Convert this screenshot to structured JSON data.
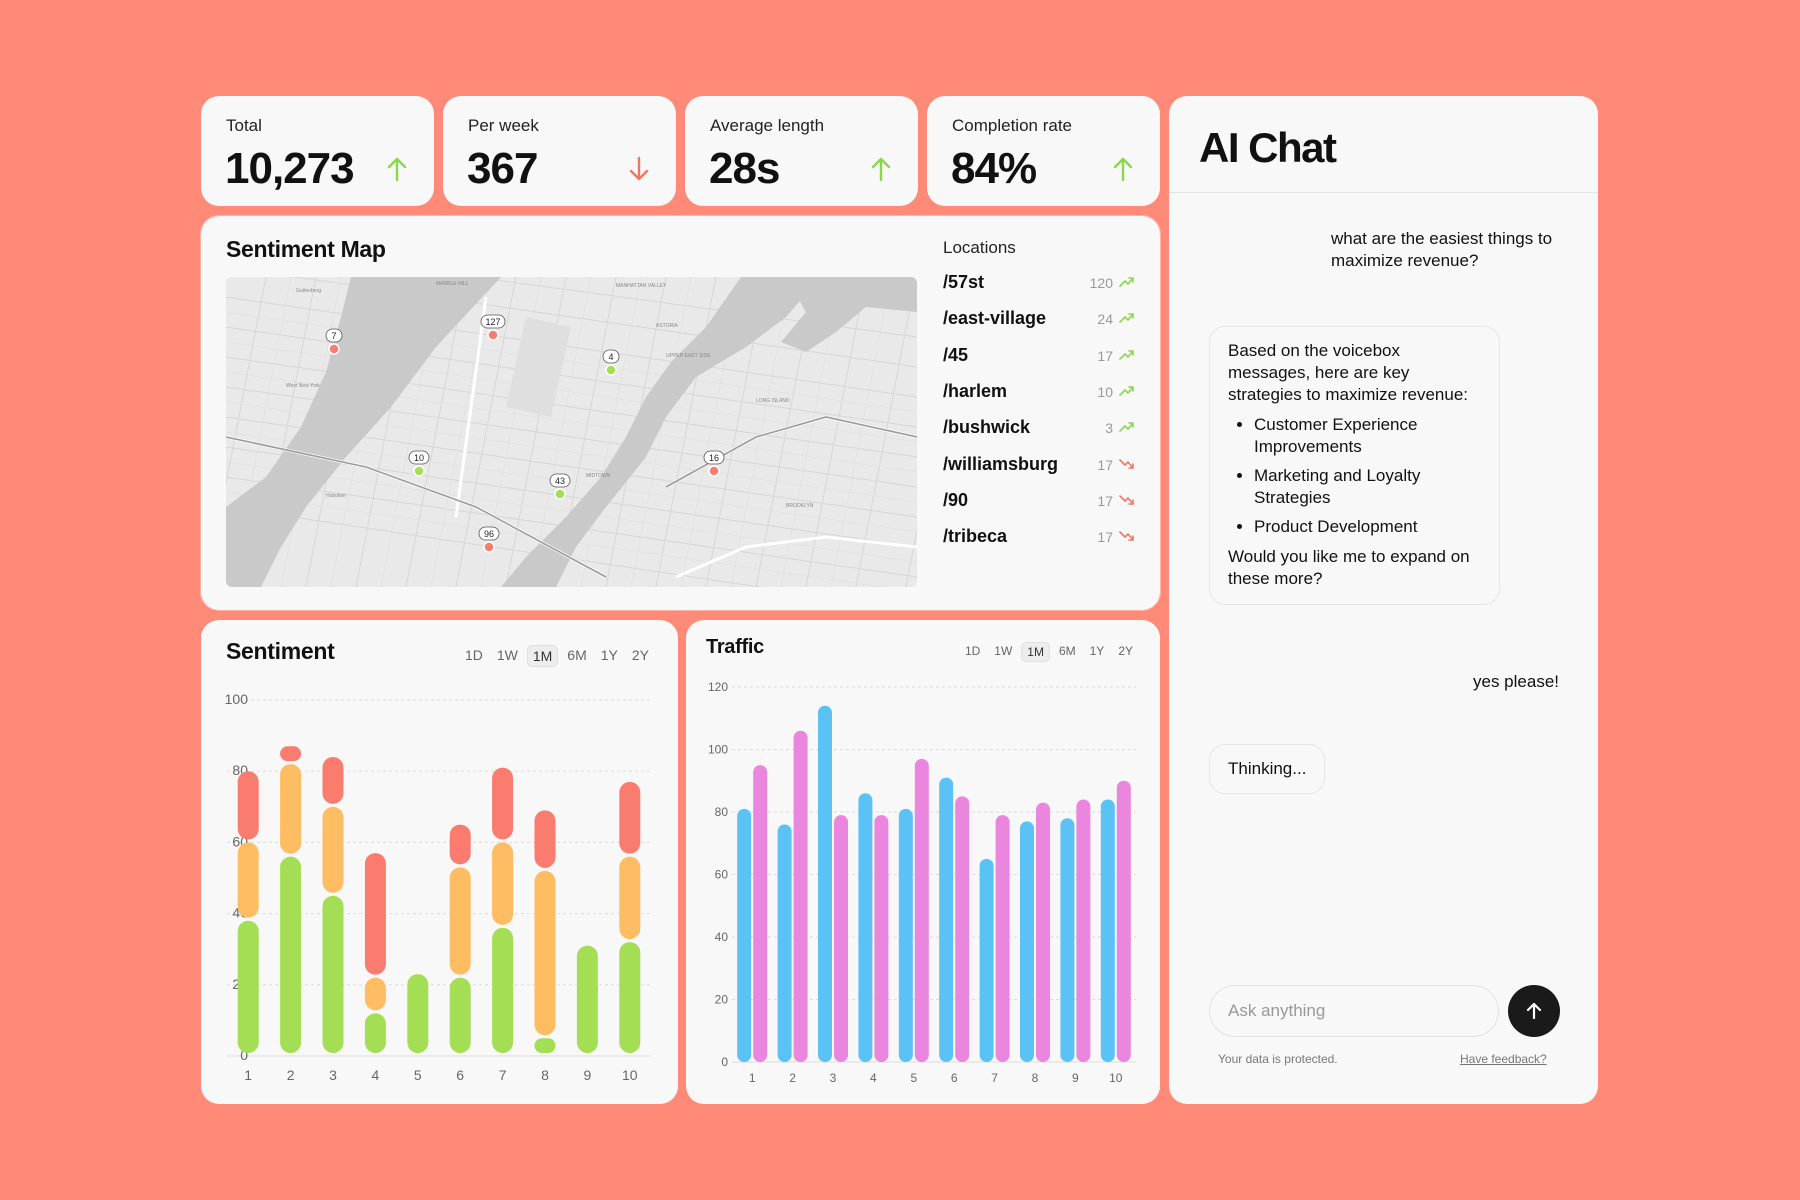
{
  "stats": [
    {
      "label": "Total",
      "value": "10,273",
      "trend": "up"
    },
    {
      "label": "Per week",
      "value": "367",
      "trend": "down"
    },
    {
      "label": "Average length",
      "value": "28s",
      "trend": "up"
    },
    {
      "label": "Completion rate",
      "value": "84%",
      "trend": "up"
    }
  ],
  "colors": {
    "background": "#FF8A78",
    "card": "#F8F8F8",
    "up": "#8BD64E",
    "down": "#F0775F",
    "positive": "#A3DE55",
    "neutral": "#FFBD63",
    "negative": "#F97C6F",
    "traffic_a": "#5BC2F5",
    "traffic_b": "#EA86DE"
  },
  "sentiment_map": {
    "title": "Sentiment Map",
    "locations_title": "Locations",
    "locations": [
      {
        "name": "/57st",
        "count": "120",
        "trend": "up"
      },
      {
        "name": "/east-village",
        "count": "24",
        "trend": "up"
      },
      {
        "name": "/45",
        "count": "17",
        "trend": "up"
      },
      {
        "name": "/harlem",
        "count": "10",
        "trend": "up"
      },
      {
        "name": "/bushwick",
        "count": "3",
        "trend": "up"
      },
      {
        "name": "/williamsburg",
        "count": "17",
        "trend": "down"
      },
      {
        "name": "/90",
        "count": "17",
        "trend": "down"
      },
      {
        "name": "/tribeca",
        "count": "17",
        "trend": "down"
      }
    ],
    "markers": [
      {
        "label": "7",
        "sentiment": "negative"
      },
      {
        "label": "127",
        "sentiment": "negative"
      },
      {
        "label": "4",
        "sentiment": "positive"
      },
      {
        "label": "10",
        "sentiment": "positive"
      },
      {
        "label": "43",
        "sentiment": "positive"
      },
      {
        "label": "96",
        "sentiment": "negative"
      },
      {
        "label": "16",
        "sentiment": "negative"
      }
    ]
  },
  "timeframes": [
    "1D",
    "1W",
    "1M",
    "6M",
    "1Y",
    "2Y"
  ],
  "active_timeframe": "1M",
  "sentiment_chart": {
    "title": "Sentiment"
  },
  "traffic_chart": {
    "title": "Traffic"
  },
  "chart_data": [
    {
      "type": "bar",
      "stacked": true,
      "title": "Sentiment",
      "categories": [
        "1",
        "2",
        "3",
        "4",
        "5",
        "6",
        "7",
        "8",
        "9",
        "10"
      ],
      "series": [
        {
          "values": [
            38,
            56,
            45,
            12,
            23,
            22,
            36,
            5,
            31,
            32
          ]
        },
        {
          "values": [
            22,
            26,
            25,
            10,
            0,
            31,
            24,
            47,
            0,
            24
          ]
        },
        {
          "values": [
            20,
            5,
            14,
            35,
            0,
            12,
            21,
            17,
            0,
            21
          ]
        }
      ],
      "ylim": [
        0,
        100
      ],
      "yticks": [
        0,
        20,
        40,
        60,
        80,
        100
      ],
      "grid": true
    },
    {
      "type": "bar",
      "title": "Traffic",
      "categories": [
        "1",
        "2",
        "3",
        "4",
        "5",
        "6",
        "7",
        "8",
        "9",
        "10"
      ],
      "series": [
        {
          "values": [
            81,
            76,
            114,
            86,
            81,
            91,
            65,
            77,
            78,
            84
          ]
        },
        {
          "values": [
            95,
            106,
            79,
            79,
            97,
            85,
            79,
            83,
            84,
            90
          ]
        }
      ],
      "ylim": [
        0,
        120
      ],
      "yticks": [
        0,
        20,
        40,
        60,
        80,
        100,
        120
      ],
      "grid": true
    }
  ],
  "chat": {
    "title": "AI Chat",
    "user_msg_1": "what are the easiest things to maximize revenue?",
    "bot_intro": "Based on the voicebox messages, here are key strategies to maximize revenue:",
    "bot_items": [
      "Customer Experience Improvements",
      "Marketing and Loyalty Strategies",
      "Product Development"
    ],
    "bot_outro": "Would you like me to expand on these more?",
    "user_msg_2": "yes please!",
    "thinking": "Thinking...",
    "input_placeholder": "Ask anything",
    "privacy_note": "Your data is protected.",
    "feedback_link": "Have feedback?"
  }
}
